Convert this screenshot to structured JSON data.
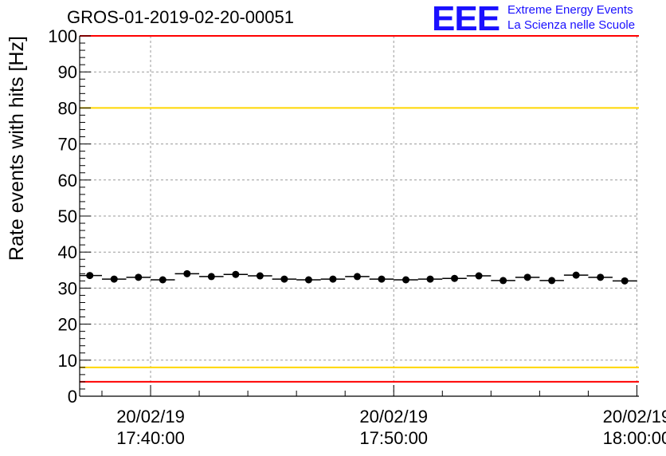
{
  "title": "GROS-01-2019-02-20-00051",
  "logo": {
    "mark": "EEE",
    "line1": "Extreme Energy Events",
    "line2": "La Scienza nelle Scuole",
    "color": "#1a10ff"
  },
  "chart_data": {
    "type": "scatter",
    "ylabel": "Rate events with hits [Hz]",
    "xlabel": "",
    "ylim": [
      0,
      100
    ],
    "y_ticks": [
      "0",
      "10",
      "20",
      "30",
      "40",
      "50",
      "60",
      "70",
      "80",
      "90",
      "100"
    ],
    "x_ticks": [
      {
        "date": "20/02/19",
        "time": "17:40:00",
        "t": "2019-02-20T17:40:00"
      },
      {
        "date": "20/02/19",
        "time": "17:50:00",
        "t": "2019-02-20T17:50:00"
      },
      {
        "date": "20/02/19",
        "time": "18:00:00",
        "t": "2019-02-20T18:00:00"
      }
    ],
    "xlim": [
      "2019-02-20T17:37:05",
      "2019-02-20T18:00:05"
    ],
    "grid": true,
    "reference_lines": [
      {
        "y": 100,
        "color": "#ff0000"
      },
      {
        "y": 80,
        "color": "#ffd700"
      },
      {
        "y": 8,
        "color": "#ffd700"
      },
      {
        "y": 4,
        "color": "#ff0000"
      }
    ],
    "series": [
      {
        "color": "#000000",
        "x": [
          "2019-02-20T17:37:30",
          "2019-02-20T17:38:30",
          "2019-02-20T17:39:30",
          "2019-02-20T17:40:30",
          "2019-02-20T17:41:30",
          "2019-02-20T17:42:30",
          "2019-02-20T17:43:30",
          "2019-02-20T17:44:30",
          "2019-02-20T17:45:30",
          "2019-02-20T17:46:30",
          "2019-02-20T17:47:30",
          "2019-02-20T17:48:30",
          "2019-02-20T17:49:30",
          "2019-02-20T17:50:30",
          "2019-02-20T17:51:30",
          "2019-02-20T17:52:30",
          "2019-02-20T17:53:30",
          "2019-02-20T17:54:30",
          "2019-02-20T17:55:30",
          "2019-02-20T17:56:30",
          "2019-02-20T17:57:30",
          "2019-02-20T17:58:30",
          "2019-02-20T17:59:30"
        ],
        "y": [
          33.5,
          32.5,
          33.0,
          32.3,
          34.0,
          33.2,
          33.8,
          33.4,
          32.5,
          32.3,
          32.5,
          33.2,
          32.5,
          32.3,
          32.5,
          32.7,
          33.4,
          32.1,
          33.0,
          32.1,
          33.6,
          33.0,
          32.0
        ],
        "bin_width_s": 60
      }
    ]
  }
}
